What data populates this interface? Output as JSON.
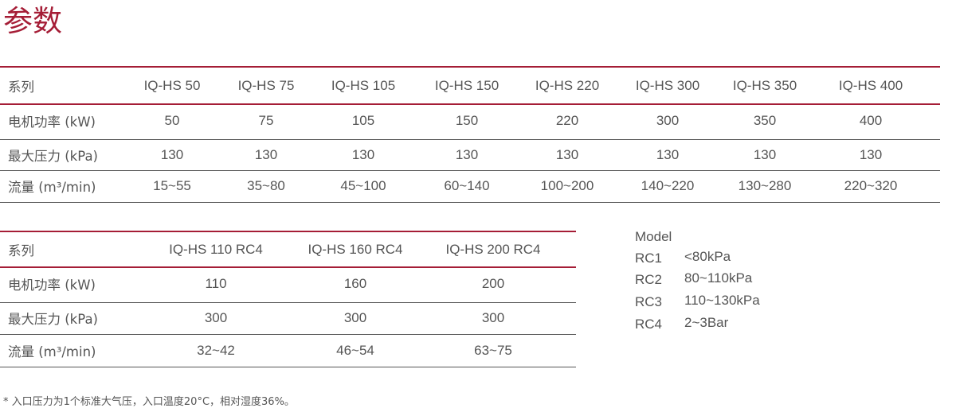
{
  "title": "参数",
  "table1": {
    "header": {
      "label": "系列",
      "values": [
        "IQ-HS 50",
        "IQ-HS 75",
        "IQ-HS 105",
        "IQ-HS 150",
        "IQ-HS 220",
        "IQ-HS 300",
        "IQ-HS 350",
        "IQ-HS 400"
      ]
    },
    "rows": [
      {
        "label": "电机功率 (kW)",
        "values": [
          "50",
          "75",
          "105",
          "150",
          "220",
          "300",
          "350",
          "400"
        ]
      },
      {
        "label": "最大压力 (kPa)",
        "values": [
          "130",
          "130",
          "130",
          "130",
          "130",
          "130",
          "130",
          "130"
        ]
      },
      {
        "label": "流量 (m³/min)",
        "values": [
          "15~55",
          "35~80",
          "45~100",
          "60~140",
          "100~200",
          "140~220",
          "130~280",
          "220~320"
        ]
      }
    ]
  },
  "table2": {
    "header": {
      "label": "系列",
      "values": [
        "IQ-HS 110 RC4",
        "IQ-HS 160 RC4",
        "IQ-HS 200 RC4"
      ]
    },
    "rows": [
      {
        "label": "电机功率 (kW)",
        "values": [
          "110",
          "160",
          "200"
        ]
      },
      {
        "label": "最大压力 (kPa)",
        "values": [
          "300",
          "300",
          "300"
        ]
      },
      {
        "label": "流量 (m³/min)",
        "values": [
          "32~42",
          "46~54",
          "63~75"
        ]
      }
    ]
  },
  "legend": {
    "title": "Model",
    "items": [
      {
        "code": "RC1",
        "value": "<80kPa"
      },
      {
        "code": "RC2",
        "value": "80~110kPa"
      },
      {
        "code": "RC3",
        "value": "110~130kPa"
      },
      {
        "code": "RC4",
        "value": "2~3Bar"
      }
    ]
  },
  "footnote": "* 入口压力为1个标准大气压，入口温度20°C，相对湿度36%。",
  "colors": {
    "accent": "#a51d36",
    "text": "#555555"
  }
}
